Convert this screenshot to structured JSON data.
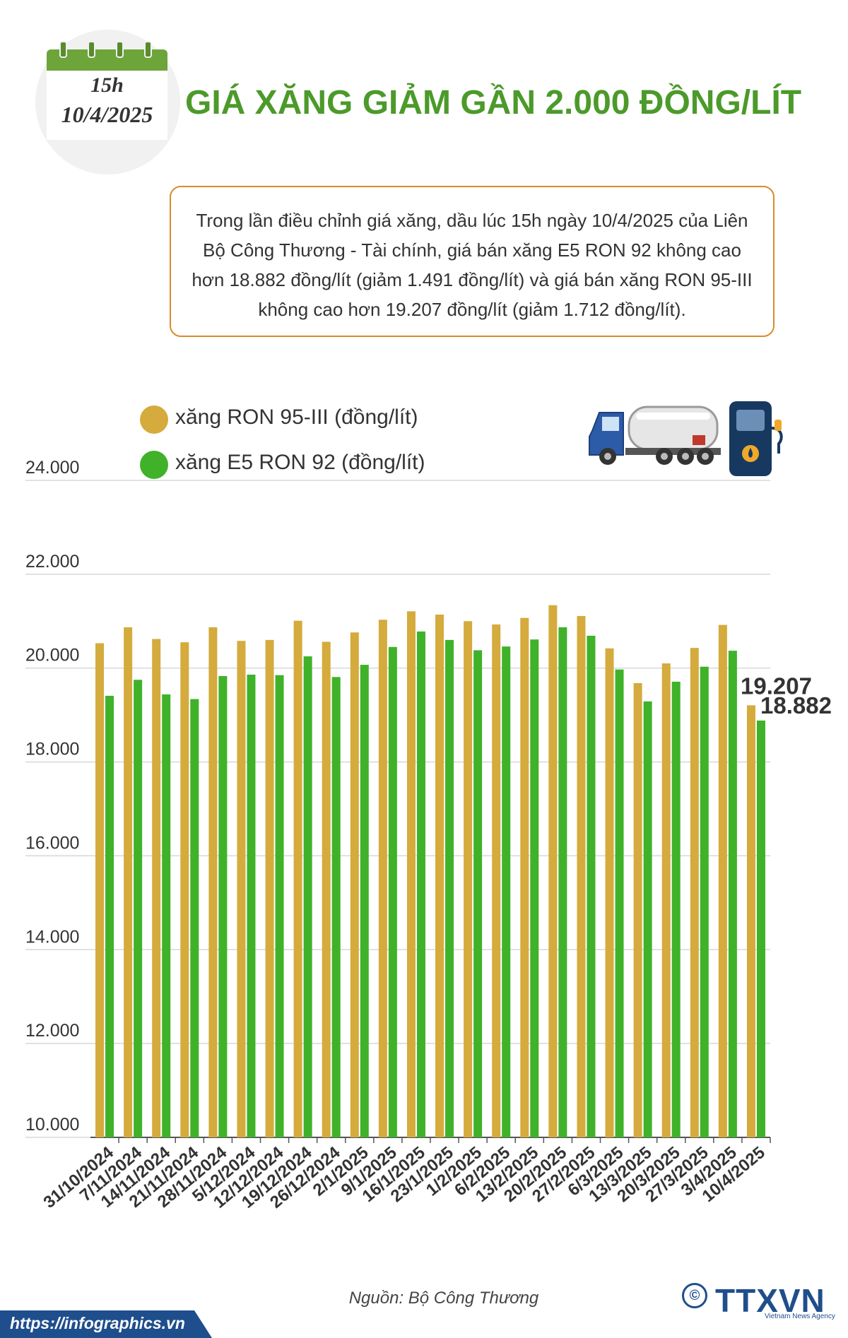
{
  "header": {
    "calendar_time": "15h",
    "calendar_date": "10/4/2025",
    "title": "GIÁ XĂNG GIẢM GẦN 2.000 ĐỒNG/LÍT"
  },
  "description": "Trong lần điều chỉnh giá xăng, dầu lúc 15h ngày 10/4/2025 của Liên Bộ Công Thương - Tài chính, giá bán xăng E5 RON 92 không cao hơn 18.882 đồng/lít (giảm 1.491 đồng/lít) và giá bán xăng RON 95-III không cao hơn 19.207 đồng/lít (giảm 1.712 đồng/lít).",
  "colors": {
    "ron95": "#d4ab3c",
    "e5": "#3fb22a",
    "title": "#4c9a2a",
    "box_border": "#d98a2b",
    "brand": "#1f4e8c"
  },
  "chart_data": {
    "type": "bar",
    "ylim": [
      10000,
      24000
    ],
    "y_ticks": [
      "24.000",
      "22.000",
      "20.000",
      "18.000",
      "16.000",
      "14.000",
      "12.000",
      "10.000"
    ],
    "y_tick_values": [
      24000,
      22000,
      20000,
      18000,
      16000,
      14000,
      12000,
      10000
    ],
    "grid": true,
    "legend_position": "top-left",
    "categories": [
      "31/10/2024",
      "7/11/2024",
      "14/11/2024",
      "21/11/2024",
      "28/11/2024",
      "5/12/2024",
      "12/12/2024",
      "19/12/2024",
      "26/12/2024",
      "2/1/2025",
      "9/1/2025",
      "16/1/2025",
      "23/1/2025",
      "1/2/2025",
      "6/2/2025",
      "13/2/2025",
      "20/2/2025",
      "27/2/2025",
      "6/3/2025",
      "13/3/2025",
      "20/3/2025",
      "27/3/2025",
      "3/4/2025",
      "10/4/2025"
    ],
    "series": [
      {
        "name": "xăng RON 95-III (đồng/lít)",
        "values": [
          20530,
          20870,
          20620,
          20550,
          20870,
          20580,
          20600,
          21010,
          20560,
          20760,
          21030,
          21210,
          21140,
          21000,
          20930,
          21070,
          21340,
          21110,
          20420,
          19680,
          20100,
          20430,
          20920,
          19207
        ]
      },
      {
        "name": "xăng E5 RON 92 (đồng/lít)",
        "values": [
          19410,
          19750,
          19440,
          19340,
          19830,
          19860,
          19850,
          20250,
          19810,
          20070,
          20450,
          20780,
          20600,
          20380,
          20460,
          20610,
          20870,
          20690,
          19970,
          19290,
          19710,
          20030,
          20370,
          18882
        ]
      }
    ],
    "end_labels": {
      "ron95": "19.207",
      "e5": "18.882"
    }
  },
  "icons": {
    "truck": "tanker-truck-icon",
    "pump": "fuel-pump-icon"
  },
  "footer": {
    "source": "Nguồn: Bộ Công Thương",
    "url": "https://infographics.vn",
    "logo": "TTXVN",
    "logo_sub": "Vietnam News Agency",
    "copyright": "©"
  }
}
